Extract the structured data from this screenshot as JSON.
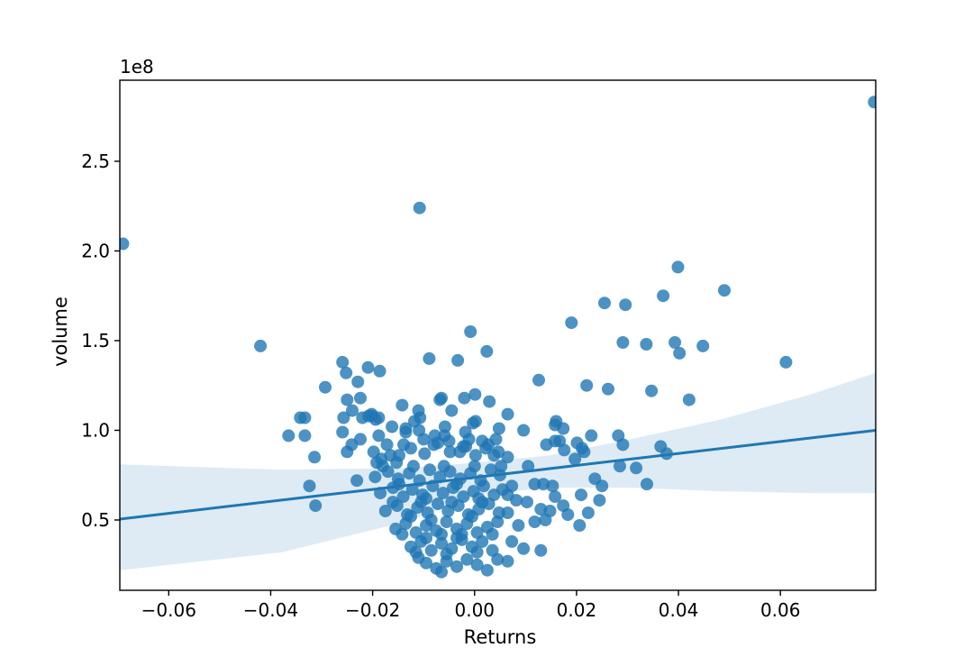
{
  "chart_data": {
    "type": "scatter",
    "title": "",
    "xlabel": "Returns",
    "ylabel": "volume",
    "y_offset_text": "1e8",
    "grid": false,
    "legend_position": "none",
    "xlim": [
      -0.0696,
      0.0787
    ],
    "ylim_e8": [
      0.108,
      2.952
    ],
    "xticks": [
      -0.06,
      -0.04,
      -0.02,
      0.0,
      0.02,
      0.04,
      0.06
    ],
    "xtick_labels": [
      "−0.06",
      "−0.04",
      "−0.02",
      "0.00",
      "0.02",
      "0.04",
      "0.06"
    ],
    "yticks_e8": [
      0.5,
      1.0,
      1.5,
      2.0,
      2.5
    ],
    "ytick_labels": [
      "0.5",
      "1.0",
      "1.5",
      "2.0",
      "2.5"
    ],
    "colors": {
      "point": "#1f77b4",
      "point_alpha": 0.8,
      "regression_line": "#1f77b4",
      "band": "#1f77b4",
      "band_alpha": 0.15,
      "spine": "#000000",
      "text": "#000000"
    },
    "regression_line": {
      "x": [
        -0.0696,
        0.0787
      ],
      "y_e8": [
        0.505,
        1.0
      ]
    },
    "confidence_band": {
      "x": [
        -0.0696,
        -0.0378,
        -0.0135,
        0.0006,
        0.0147,
        0.0306,
        0.0483,
        0.066,
        0.0787
      ],
      "top_e8": [
        0.81,
        0.78,
        0.79,
        0.82,
        0.86,
        0.95,
        1.06,
        1.2,
        1.32
      ],
      "bot_e8": [
        0.22,
        0.32,
        0.49,
        0.64,
        0.68,
        0.68,
        0.66,
        0.65,
        0.65
      ]
    },
    "points_e8": [
      [
        -0.069,
        2.04
      ],
      [
        -0.0108,
        2.24
      ],
      [
        0.0784,
        2.83
      ],
      [
        0.0399,
        1.91
      ],
      [
        -0.042,
        1.47
      ],
      [
        -0.0259,
        1.38
      ],
      [
        -0.0252,
        1.32
      ],
      [
        -0.0209,
        1.35
      ],
      [
        -0.0186,
        1.33
      ],
      [
        -0.0229,
        1.27
      ],
      [
        -0.0293,
        1.24
      ],
      [
        -0.025,
        1.17
      ],
      [
        -0.0224,
        1.18
      ],
      [
        -0.024,
        1.11
      ],
      [
        -0.0257,
        1.07
      ],
      [
        -0.022,
        1.07
      ],
      [
        -0.0202,
        1.08
      ],
      [
        -0.0188,
        1.07
      ],
      [
        -0.0342,
        1.07
      ],
      [
        -0.0333,
        1.07
      ],
      [
        -0.0142,
        1.14
      ],
      [
        -0.011,
        1.11
      ],
      [
        -0.0107,
        1.07
      ],
      [
        -0.0089,
        1.4
      ],
      [
        -0.0068,
        1.17
      ],
      [
        -0.0065,
        1.18
      ],
      [
        -0.0033,
        1.39
      ],
      [
        -0.0045,
        1.11
      ],
      [
        -0.002,
        1.18
      ],
      [
        -0.0008,
        1.55
      ],
      [
        0.0001,
        1.2
      ],
      [
        0.0024,
        1.44
      ],
      [
        0.0029,
        1.16
      ],
      [
        0.0065,
        1.09
      ],
      [
        0.049,
        1.78
      ],
      [
        0.0255,
        1.71
      ],
      [
        0.0296,
        1.7
      ],
      [
        0.037,
        1.75
      ],
      [
        0.019,
        1.6
      ],
      [
        0.0291,
        1.49
      ],
      [
        0.0337,
        1.48
      ],
      [
        0.0393,
        1.49
      ],
      [
        0.0402,
        1.43
      ],
      [
        0.0448,
        1.47
      ],
      [
        0.0611,
        1.38
      ],
      [
        0.0126,
        1.28
      ],
      [
        0.022,
        1.25
      ],
      [
        0.0262,
        1.23
      ],
      [
        0.0347,
        1.22
      ],
      [
        0.0421,
        1.17
      ],
      [
        0.016,
        1.05
      ],
      [
        -0.0365,
        0.97
      ],
      [
        -0.0333,
        0.97
      ],
      [
        -0.0314,
        0.85
      ],
      [
        -0.0324,
        0.69
      ],
      [
        -0.0312,
        0.58
      ],
      [
        -0.0259,
        0.99
      ],
      [
        -0.025,
        0.88
      ],
      [
        -0.0241,
        0.92
      ],
      [
        -0.0224,
        0.95
      ],
      [
        -0.0231,
        0.72
      ],
      [
        -0.0208,
        1.08
      ],
      [
        -0.0202,
        1.09
      ],
      [
        -0.0194,
        1.06
      ],
      [
        -0.0183,
        0.84
      ],
      [
        -0.0192,
        0.82
      ],
      [
        -0.0165,
        0.86
      ],
      [
        -0.0153,
        0.82
      ],
      [
        -0.0135,
        1.01
      ],
      [
        -0.0139,
        0.92
      ],
      [
        -0.0109,
        1.0
      ],
      [
        -0.01,
        0.95
      ],
      [
        -0.008,
        0.92
      ],
      [
        -0.0059,
        0.97
      ],
      [
        -0.005,
        0.94
      ],
      [
        -0.0029,
        0.88
      ],
      [
        -0.0017,
        0.91
      ],
      [
        -0.0011,
        0.95
      ],
      [
        -0.0003,
        1.04
      ],
      [
        0.0015,
        0.94
      ],
      [
        0.0027,
        0.92
      ],
      [
        0.0047,
        0.88
      ],
      [
        0.0052,
        0.8
      ],
      [
        0.0096,
        1.0
      ],
      [
        0.0158,
        1.03
      ],
      [
        0.0174,
        1.01
      ],
      [
        0.0141,
        0.92
      ],
      [
        0.0158,
        0.94
      ],
      [
        0.0167,
        0.94
      ],
      [
        0.0176,
        0.89
      ],
      [
        0.0201,
        0.93
      ],
      [
        0.0211,
        0.9
      ],
      [
        0.0229,
        0.97
      ],
      [
        0.0197,
        0.84
      ],
      [
        0.0215,
        0.88
      ],
      [
        0.0065,
        0.85
      ],
      [
        0.0073,
        0.69
      ],
      [
        0.0105,
        0.8
      ],
      [
        0.0118,
        0.7
      ],
      [
        0.0135,
        0.7
      ],
      [
        0.0153,
        0.69
      ],
      [
        0.0158,
        0.63
      ],
      [
        0.013,
        0.56
      ],
      [
        0.0103,
        0.6
      ],
      [
        0.0082,
        0.61
      ],
      [
        0.0065,
        0.64
      ],
      [
        0.0086,
        0.47
      ],
      [
        0.0118,
        0.49
      ],
      [
        0.0139,
        0.5
      ],
      [
        0.0148,
        0.55
      ],
      [
        0.0065,
        0.54
      ],
      [
        0.0073,
        0.38
      ],
      [
        0.0096,
        0.34
      ],
      [
        0.013,
        0.33
      ],
      [
        0.0065,
        0.27
      ],
      [
        0.0174,
        0.58
      ],
      [
        0.0183,
        0.53
      ],
      [
        0.0206,
        0.47
      ],
      [
        0.0223,
        0.54
      ],
      [
        0.0209,
        0.64
      ],
      [
        0.0245,
        0.61
      ],
      [
        0.025,
        0.69
      ],
      [
        0.0236,
        0.73
      ],
      [
        0.0282,
        0.97
      ],
      [
        0.0291,
        0.92
      ],
      [
        0.0285,
        0.8
      ],
      [
        0.0317,
        0.79
      ],
      [
        0.0338,
        0.7
      ],
      [
        0.0365,
        0.91
      ],
      [
        0.0377,
        0.87
      ],
      [
        -0.0195,
        0.74
      ],
      [
        -0.017,
        0.77
      ],
      [
        -0.015,
        0.73
      ],
      [
        -0.0128,
        0.76
      ],
      [
        -0.0108,
        0.72
      ],
      [
        -0.0088,
        0.78
      ],
      [
        -0.0068,
        0.74
      ],
      [
        -0.0048,
        0.77
      ],
      [
        -0.0028,
        0.73
      ],
      [
        -0.0008,
        0.76
      ],
      [
        0.0012,
        0.72
      ],
      [
        0.0032,
        0.78
      ],
      [
        -0.018,
        0.8
      ],
      [
        -0.012,
        0.8
      ],
      [
        -0.006,
        0.8
      ],
      [
        0.0,
        0.8
      ],
      [
        0.005,
        0.75
      ],
      [
        -0.0185,
        0.65
      ],
      [
        -0.016,
        0.68
      ],
      [
        -0.014,
        0.63
      ],
      [
        -0.0122,
        0.67
      ],
      [
        -0.0102,
        0.64
      ],
      [
        -0.0082,
        0.69
      ],
      [
        -0.0062,
        0.65
      ],
      [
        -0.0042,
        0.68
      ],
      [
        -0.0022,
        0.63
      ],
      [
        -0.0002,
        0.66
      ],
      [
        0.0018,
        0.69
      ],
      [
        0.0038,
        0.64
      ],
      [
        0.0055,
        0.67
      ],
      [
        -0.0148,
        0.7
      ],
      [
        -0.0095,
        0.62
      ],
      [
        -0.0035,
        0.7
      ],
      [
        0.0008,
        0.62
      ],
      [
        -0.0175,
        0.55
      ],
      [
        -0.0152,
        0.58
      ],
      [
        -0.0132,
        0.53
      ],
      [
        -0.0112,
        0.57
      ],
      [
        -0.0092,
        0.54
      ],
      [
        -0.0072,
        0.59
      ],
      [
        -0.0052,
        0.55
      ],
      [
        -0.0032,
        0.58
      ],
      [
        -0.0012,
        0.53
      ],
      [
        0.0008,
        0.56
      ],
      [
        0.0028,
        0.59
      ],
      [
        0.0048,
        0.54
      ],
      [
        -0.016,
        0.6
      ],
      [
        -0.0105,
        0.6
      ],
      [
        -0.0045,
        0.6
      ],
      [
        0.0015,
        0.6
      ],
      [
        -0.0125,
        0.52
      ],
      [
        -0.0005,
        0.52
      ],
      [
        -0.0155,
        0.45
      ],
      [
        -0.0135,
        0.48
      ],
      [
        -0.0115,
        0.43
      ],
      [
        -0.0095,
        0.47
      ],
      [
        -0.0075,
        0.44
      ],
      [
        -0.0055,
        0.49
      ],
      [
        -0.0035,
        0.45
      ],
      [
        -0.0015,
        0.48
      ],
      [
        0.0005,
        0.43
      ],
      [
        0.0025,
        0.46
      ],
      [
        0.0045,
        0.49
      ],
      [
        -0.0142,
        0.42
      ],
      [
        -0.0085,
        0.5
      ],
      [
        -0.0025,
        0.42
      ],
      [
        0.0035,
        0.42
      ],
      [
        -0.0065,
        0.42
      ],
      [
        -0.0125,
        0.35
      ],
      [
        -0.0105,
        0.38
      ],
      [
        -0.0085,
        0.33
      ],
      [
        -0.0065,
        0.37
      ],
      [
        -0.0045,
        0.34
      ],
      [
        -0.0025,
        0.39
      ],
      [
        -0.0005,
        0.35
      ],
      [
        0.0015,
        0.38
      ],
      [
        0.0035,
        0.33
      ],
      [
        -0.0095,
        0.4
      ],
      [
        -0.0035,
        0.4
      ],
      [
        0.0005,
        0.32
      ],
      [
        -0.0115,
        0.32
      ],
      [
        -0.0055,
        0.31
      ],
      [
        -0.0095,
        0.26
      ],
      [
        -0.0075,
        0.23
      ],
      [
        -0.0055,
        0.27
      ],
      [
        -0.0035,
        0.24
      ],
      [
        -0.0015,
        0.28
      ],
      [
        0.0005,
        0.25
      ],
      [
        0.0025,
        0.22
      ],
      [
        -0.0065,
        0.21
      ],
      [
        0.0045,
        0.28
      ],
      [
        -0.011,
        0.29
      ],
      [
        -0.0198,
        0.88
      ],
      [
        -0.0172,
        0.92
      ],
      [
        -0.0148,
        0.86
      ],
      [
        -0.0125,
        0.9
      ],
      [
        -0.0098,
        0.87
      ],
      [
        -0.0072,
        0.93
      ],
      [
        -0.0048,
        0.88
      ],
      [
        -0.0022,
        0.91
      ],
      [
        0.0002,
        0.86
      ],
      [
        0.0022,
        0.9
      ],
      [
        0.0042,
        0.95
      ],
      [
        -0.0188,
        0.97
      ],
      [
        -0.0135,
        0.99
      ],
      [
        -0.0078,
        0.97
      ],
      [
        -0.0018,
        0.99
      ],
      [
        0.0038,
        0.86
      ],
      [
        -0.0162,
        1.02
      ],
      [
        -0.0118,
        1.05
      ],
      [
        -0.0058,
        1.02
      ],
      [
        0.0002,
        1.05
      ],
      [
        0.0048,
        1.01
      ]
    ]
  }
}
